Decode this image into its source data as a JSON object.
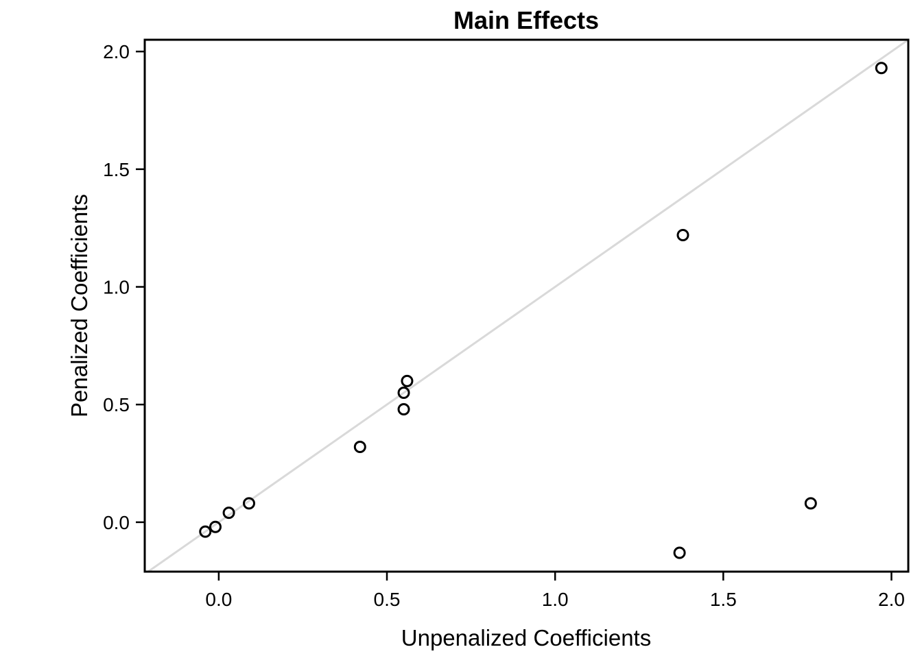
{
  "chart_data": {
    "type": "scatter",
    "title": "Main Effects",
    "xlabel": "Unpenalized Coefficients",
    "ylabel": "Penalized Coefficients",
    "xlim": [
      -0.22,
      2.05
    ],
    "ylim": [
      -0.21,
      2.05
    ],
    "xticks": [
      "0.0",
      "0.5",
      "1.0",
      "1.5",
      "2.0"
    ],
    "yticks": [
      "0.0",
      "0.5",
      "1.0",
      "1.5",
      "2.0"
    ],
    "reference_line": "y = x",
    "reference_line_color": "#d9d9d9",
    "marker": "open-circle",
    "grid": false,
    "points": [
      {
        "x": -0.04,
        "y": -0.04
      },
      {
        "x": -0.01,
        "y": -0.02
      },
      {
        "x": 0.03,
        "y": 0.04
      },
      {
        "x": 0.09,
        "y": 0.08
      },
      {
        "x": 0.42,
        "y": 0.32
      },
      {
        "x": 0.55,
        "y": 0.55
      },
      {
        "x": 0.56,
        "y": 0.6
      },
      {
        "x": 0.55,
        "y": 0.48
      },
      {
        "x": 1.38,
        "y": 1.22
      },
      {
        "x": 1.37,
        "y": -0.13
      },
      {
        "x": 1.76,
        "y": 0.08
      },
      {
        "x": 1.97,
        "y": 1.93
      }
    ]
  }
}
